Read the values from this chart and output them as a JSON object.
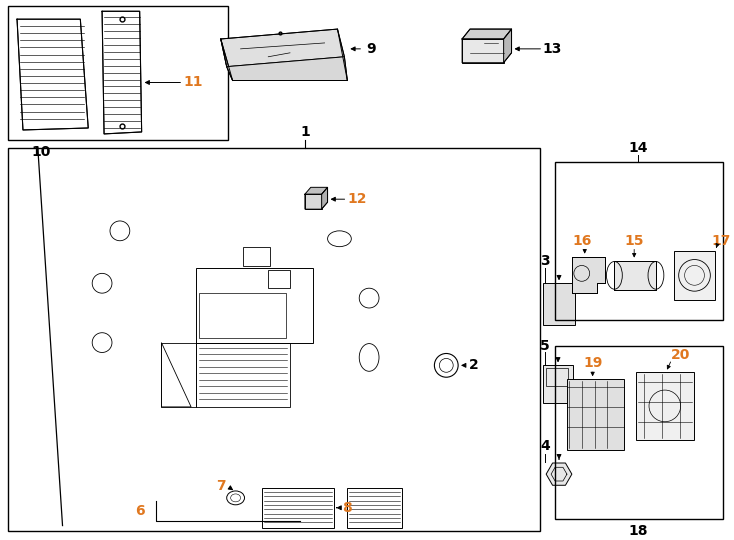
{
  "bg_color": "#ffffff",
  "line_color": "#000000",
  "label_color_black": "#000000",
  "label_color_orange": "#e07820",
  "fig_width": 7.34,
  "fig_height": 5.4,
  "dpi": 100
}
